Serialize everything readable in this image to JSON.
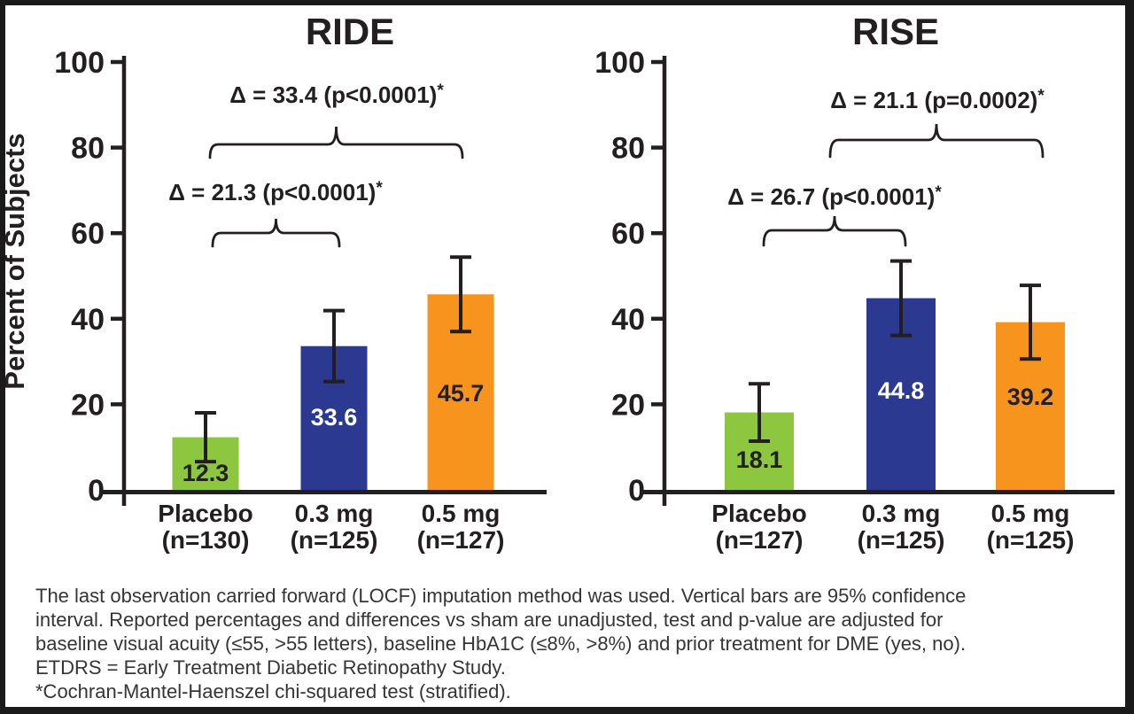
{
  "figure": {
    "ylabel": "Percent of Subjects",
    "footnote_lines": [
      "The last observation carried forward (LOCF) imputation method was used. Vertical bars are 95% confidence",
      "interval. Reported percentages and differences vs sham are unadjusted, test and p-value are adjusted for",
      "baseline visual acuity (≤55, >55 letters), baseline HbA1C (≤8%, >8%) and prior treatment for DME (yes, no).",
      "ETDRS = Early Treatment Diabetic Retinopathy Study.",
      "*Cochran-Mantel-Haenszel chi-squared test (stratified)."
    ]
  },
  "colors": {
    "green": "#8DC63F",
    "blue": "#2B3990",
    "orange": "#F7941E",
    "ink": "#231F20",
    "white": "#FFFFFF"
  },
  "chart_data": [
    {
      "type": "bar",
      "title": "RIDE",
      "xlabel": "",
      "ylabel": "Percent of Subjects",
      "ylim": [
        0,
        100
      ],
      "yticks": [
        0,
        20,
        40,
        60,
        80,
        100
      ],
      "grid": false,
      "legend": "none",
      "categories": [
        "Placebo",
        "0.3 mg",
        "0.5 mg"
      ],
      "category_sublabels": [
        "(n=130)",
        "(n=125)",
        "(n=127)"
      ],
      "values": [
        12.3,
        33.6,
        45.7
      ],
      "value_labels": [
        "12.3",
        "33.6",
        "45.7"
      ],
      "ci95": [
        [
          6.6,
          18.0
        ],
        [
          25.3,
          41.9
        ],
        [
          37.0,
          54.4
        ]
      ],
      "bar_colors": [
        "#8DC63F",
        "#2B3990",
        "#F7941E"
      ],
      "value_label_colors": [
        "#231F20",
        "#FFFFFF",
        "#231F20"
      ],
      "annotations": [
        {
          "text": "Δ = 33.4 (p<0.0001)*",
          "compares": [
            "Placebo",
            "0.5 mg"
          ]
        },
        {
          "text": "Δ = 21.3 (p<0.0001)*",
          "compares": [
            "Placebo",
            "0.3 mg"
          ]
        }
      ]
    },
    {
      "type": "bar",
      "title": "RISE",
      "xlabel": "",
      "ylabel": "",
      "ylim": [
        0,
        100
      ],
      "yticks": [
        0,
        20,
        40,
        60,
        80,
        100
      ],
      "grid": false,
      "legend": "none",
      "categories": [
        "Placebo",
        "0.3 mg",
        "0.5 mg"
      ],
      "category_sublabels": [
        "(n=127)",
        "(n=125)",
        "(n=125)"
      ],
      "values": [
        18.1,
        44.8,
        39.2
      ],
      "value_labels": [
        "18.1",
        "44.8",
        "39.2"
      ],
      "ci95": [
        [
          11.4,
          24.8
        ],
        [
          36.1,
          53.5
        ],
        [
          30.6,
          47.8
        ]
      ],
      "bar_colors": [
        "#8DC63F",
        "#2B3990",
        "#F7941E"
      ],
      "value_label_colors": [
        "#231F20",
        "#FFFFFF",
        "#231F20"
      ],
      "annotations": [
        {
          "text": "Δ = 21.1 (p=0.0002)*",
          "compares": [
            "Placebo",
            "0.5 mg"
          ]
        },
        {
          "text": "Δ = 26.7 (p<0.0001)*",
          "compares": [
            "Placebo",
            "0.3 mg"
          ]
        }
      ]
    }
  ]
}
